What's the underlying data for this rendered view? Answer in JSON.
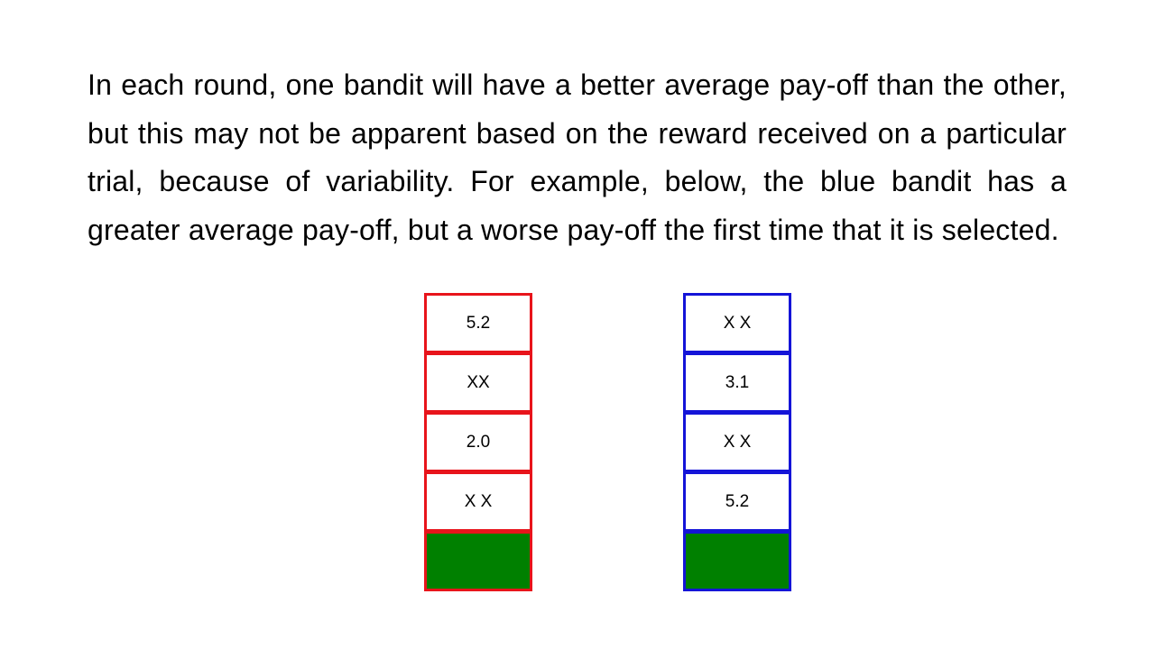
{
  "text": {
    "paragraph": "In each round, one bandit will have a better average pay-off than the other, but this may not be apparent based on the reward received on a particular trial, because of variability. For example, below, the blue bandit has a greater average pay-off, but a worse pay-off the first time that it is selected."
  },
  "bandits": {
    "red": {
      "border_color": "#e8141b",
      "cells": [
        "5.2",
        "XX",
        "2.0",
        "X X"
      ],
      "reward_color": "#008000"
    },
    "blue": {
      "border_color": "#1414d8",
      "cells": [
        "X X",
        "3.1",
        "X X",
        "5.2"
      ],
      "reward_color": "#008000"
    }
  }
}
